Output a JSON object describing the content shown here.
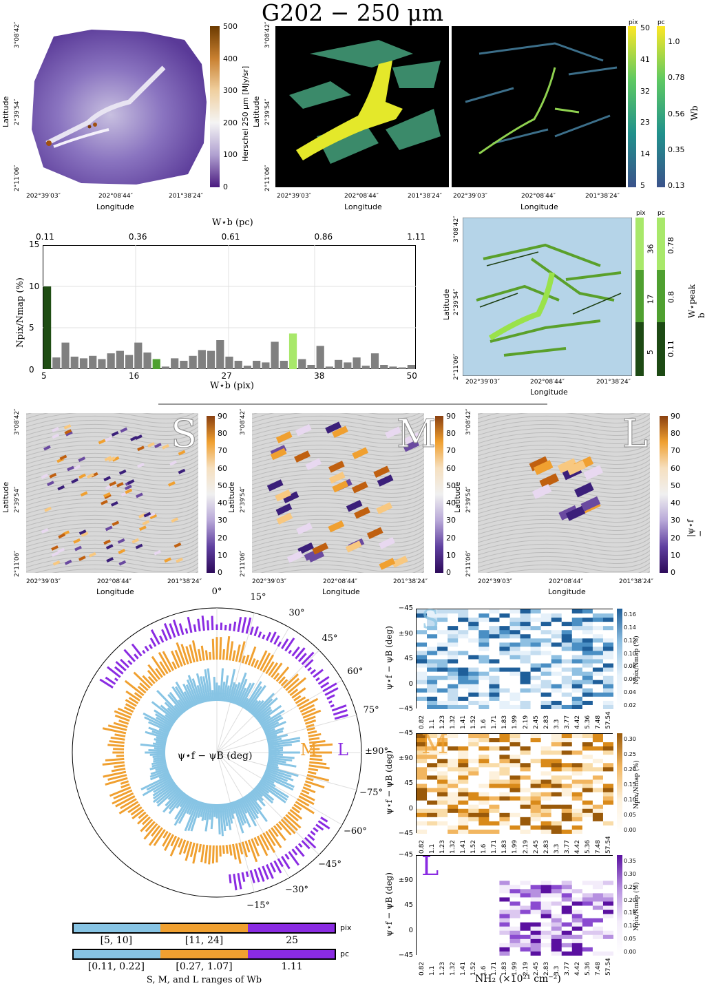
{
  "title": "G202 − 250 μm",
  "axes": {
    "latitude": "Latitude",
    "longitude": "Longitude",
    "lat_ticks": [
      "3°08′42″",
      "2°39′54″",
      "2°11′06″"
    ],
    "lon_ticks": [
      "202°39′03″",
      "202°08′44″",
      "201°38′24″"
    ]
  },
  "row1": {
    "herschel_cbar": {
      "label": "Herschel 250 μm [MJy/sr]",
      "ticks": [
        "500",
        "400",
        "300",
        "200",
        "100",
        "0"
      ]
    },
    "pix_cbar": {
      "unit": "pix",
      "ticks": [
        "50",
        "41",
        "32",
        "23",
        "14",
        "5"
      ]
    },
    "pc_cbar": {
      "unit": "pc",
      "label": "Wb",
      "ticks": [
        "1.0",
        "0.78",
        "0.56",
        "0.35",
        "0.13"
      ]
    }
  },
  "histogram": {
    "top_axis_label": "W⋆b (pc)",
    "top_ticks": [
      "0.11",
      "0.36",
      "0.61",
      "0.86",
      "1.11"
    ],
    "bottom_axis_label": "W⋆b (pix)",
    "bottom_ticks": [
      "5",
      "16",
      "27",
      "38",
      "50"
    ],
    "ylabel": "Npix/Nmap (%)",
    "yticks": [
      "15",
      "10",
      "5",
      "0"
    ]
  },
  "peak_map": {
    "pix_unit": "pix",
    "pc_unit": "pc",
    "pix_ticks": [
      "36",
      "17",
      "5"
    ],
    "pc_ticks": [
      "0.78",
      "0.8",
      "0.11"
    ],
    "label": "W⋆peak b"
  },
  "row3": {
    "panels": [
      "S",
      "M",
      "L"
    ],
    "cbar_ticks": [
      "90",
      "80",
      "70",
      "60",
      "50",
      "40",
      "30",
      "20",
      "10",
      "0"
    ],
    "cbar_label": "|ψ⋆f − ψB| (deg)"
  },
  "polar": {
    "angle_ticks": [
      "0°",
      "15°",
      "30°",
      "45°",
      "60°",
      "75°",
      "±90°",
      "−75°",
      "−60°",
      "−45°",
      "−30°",
      "−15°"
    ],
    "center_label": "ψ⋆f − ψB (deg)",
    "ring_labels": [
      "S",
      "M",
      "L"
    ],
    "colors": {
      "S": "#87c4e4",
      "M": "#f0a030",
      "L": "#8a2be2"
    }
  },
  "ranges": {
    "pix_unit": "pix",
    "pc_unit": "pc",
    "pix_values": [
      "[5, 10]",
      "[11, 24]",
      "25"
    ],
    "pc_values": [
      "[0.11, 0.22]",
      "[0.27, 1.07]",
      "1.11"
    ],
    "caption": "S, M, and L ranges of Wb"
  },
  "heatmaps": {
    "ylabel": "ψ⋆f − ψB (deg)",
    "yticks": [
      "−45",
      "±90",
      "45",
      "0",
      "−45"
    ],
    "xticks": [
      "0.82",
      "1.1",
      "1.23",
      "1.32",
      "1.41",
      "1.52",
      "1.6",
      "1.71",
      "1.83",
      "1.99",
      "2.19",
      "2.45",
      "2.83",
      "3.3",
      "3.77",
      "4.42",
      "5.36",
      "7.48",
      "57.54"
    ],
    "xlabel": "NH₂ (×10²¹ cm⁻²)",
    "cbar_label": "Npix/Nmap (%)",
    "panels": [
      {
        "letter": "S",
        "ticks": [
          "0.16",
          "0.14",
          "0.12",
          "0.10",
          "0.08",
          "0.06",
          "0.04",
          "0.02"
        ]
      },
      {
        "letter": "M",
        "ticks": [
          "0.30",
          "0.25",
          "0.20",
          "0.15",
          "0.10",
          "0.05",
          "0.00"
        ]
      },
      {
        "letter": "L",
        "ticks": [
          "0.35",
          "0.30",
          "0.25",
          "0.20",
          "0.15",
          "0.10",
          "0.05",
          "0.00"
        ]
      }
    ]
  }
}
